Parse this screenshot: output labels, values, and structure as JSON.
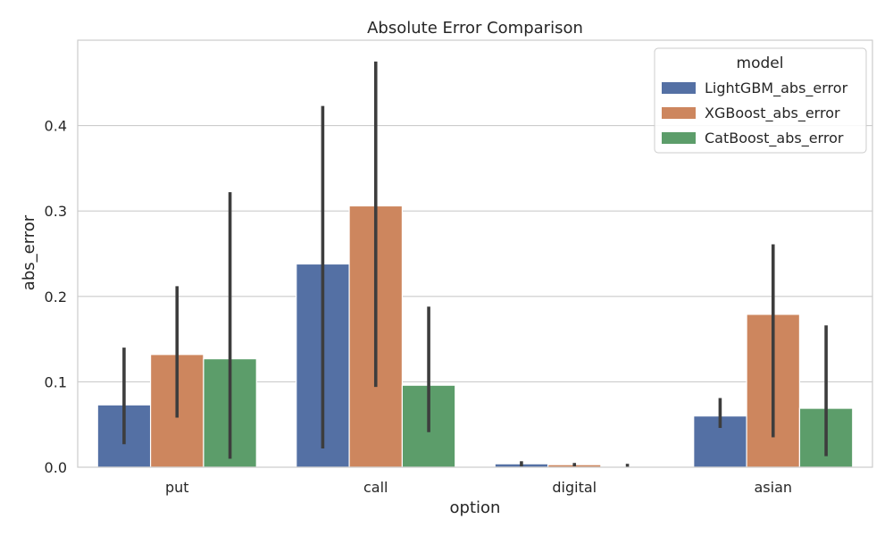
{
  "chart_data": {
    "type": "bar",
    "title": "Absolute Error Comparison",
    "xlabel": "option",
    "ylabel": "abs_error",
    "categories": [
      "put",
      "call",
      "digital",
      "asian"
    ],
    "ylim": [
      0,
      0.5
    ],
    "yticks": [
      0.0,
      0.1,
      0.2,
      0.3,
      0.4
    ],
    "ytick_labels": [
      "0.0",
      "0.1",
      "0.2",
      "0.3",
      "0.4"
    ],
    "grid": true,
    "legend": {
      "title": "model",
      "placement": "top-right"
    },
    "series": [
      {
        "name": "LightGBM_abs_error",
        "color": "#5470a4",
        "values": [
          0.073,
          0.238,
          0.004,
          0.06
        ],
        "ci": [
          [
            0.027,
            0.14
          ],
          [
            0.022,
            0.423
          ],
          [
            0.001,
            0.007
          ],
          [
            0.046,
            0.081
          ]
        ]
      },
      {
        "name": "XGBoost_abs_error",
        "color": "#cd865e",
        "values": [
          0.132,
          0.306,
          0.003,
          0.179
        ],
        "ci": [
          [
            0.058,
            0.212
          ],
          [
            0.094,
            0.475
          ],
          [
            0.001,
            0.005
          ],
          [
            0.035,
            0.261
          ]
        ]
      },
      {
        "name": "CatBoost_abs_error",
        "color": "#5c9d6a",
        "values": [
          0.127,
          0.096,
          0.001,
          0.069
        ],
        "ci": [
          [
            0.01,
            0.322
          ],
          [
            0.041,
            0.188
          ],
          [
            0.0,
            0.004
          ],
          [
            0.013,
            0.166
          ]
        ]
      }
    ]
  }
}
